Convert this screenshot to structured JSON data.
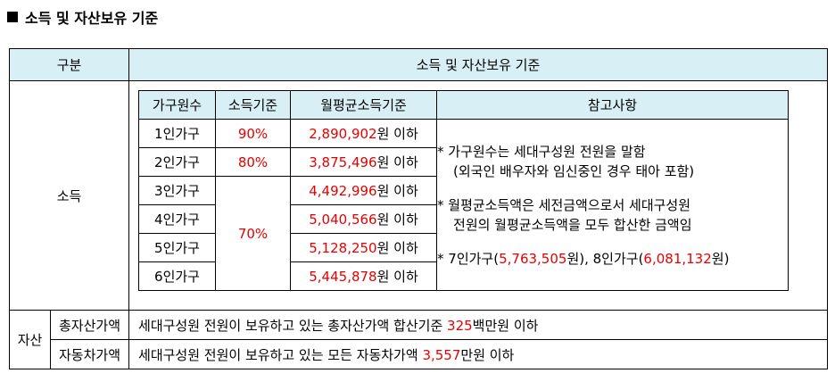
{
  "heading": "소득 및 자산보유 기준",
  "table": {
    "col1_header": "구분",
    "col2_header": "소득 및 자산보유 기준",
    "income_label": "소득",
    "asset_label": "자산",
    "income_table": {
      "headers": [
        "가구원수",
        "소득기준",
        "월평균소득기준",
        "참고사항"
      ],
      "rows": [
        {
          "household": "1인가구",
          "standard": "90%",
          "amount": "2,890,902",
          "unit": "원 이하"
        },
        {
          "household": "2인가구",
          "standard": "80%",
          "amount": "3,875,496",
          "unit": "원 이하"
        },
        {
          "household": "3인가구",
          "standard": "",
          "amount": "4,492,996",
          "unit": "원 이하"
        },
        {
          "household": "4인가구",
          "standard": "",
          "amount": "5,040,566",
          "unit": "원 이하"
        },
        {
          "household": "5인가구",
          "standard": "",
          "amount": "5,128,250",
          "unit": "원 이하"
        },
        {
          "household": "6인가구",
          "standard": "",
          "amount": "5,445,878",
          "unit": "원 이하"
        }
      ],
      "merged_standard": "70%",
      "notes": {
        "n1_line1": "* 가구원수는 세대구성원 전원을 말함",
        "n1_line2": "(외국인 배우자와 임신중인 경우 태아 포함)",
        "n2_line1": "* 월평균소득액은 세전금액으로서 세대구성원",
        "n2_line2": "전원의 월평균소득액을 모두 합산한 금액임",
        "n3_prefix": "* 7인가구(",
        "n3_v1": "5,763,505",
        "n3_mid": "원), 8인가구(",
        "n3_v2": "6,081,132",
        "n3_suffix": "원)"
      }
    },
    "assets": [
      {
        "label": "총자산가액",
        "text_before": "세대구성원 전원이 보유하고 있는 총자산가액 합산기준 ",
        "highlight": "325",
        "text_after": "백만원 이하"
      },
      {
        "label": "자동차가액",
        "text_before": "세대구성원 전원이 보유하고 있는 모든 자동차가액 ",
        "highlight": "3,557",
        "text_after": "만원 이하"
      }
    ]
  }
}
